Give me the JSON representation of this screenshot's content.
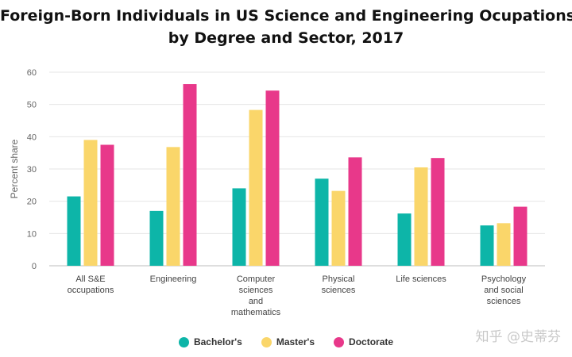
{
  "chart_data": {
    "type": "bar",
    "title_line1": "Foreign-Born Individuals in US Science and Engineering Ocupations",
    "title_line2": "by Degree and Sector, 2017",
    "ylabel": "Percent share",
    "xlabel": "",
    "ylim": [
      0,
      60
    ],
    "yticks": [
      0,
      10,
      20,
      30,
      40,
      50,
      60
    ],
    "categories": [
      [
        "All S&E",
        "occupations"
      ],
      [
        "Engineering"
      ],
      [
        "Computer",
        "sciences",
        "and",
        "mathematics"
      ],
      [
        "Physical",
        "sciences"
      ],
      [
        "Life sciences"
      ],
      [
        "Psychology",
        "and social",
        "sciences"
      ]
    ],
    "series": [
      {
        "name": "Bachelor's",
        "color": "#0db5a8",
        "values": [
          21.5,
          17,
          24,
          27,
          16.2,
          12.5
        ]
      },
      {
        "name": "Master's",
        "color": "#fad66a",
        "values": [
          39,
          36.8,
          48.3,
          23.2,
          30.5,
          13.2
        ]
      },
      {
        "name": "Doctorate",
        "color": "#e8388a",
        "values": [
          37.5,
          56.3,
          54.3,
          33.6,
          33.4,
          18.3
        ]
      }
    ],
    "legend_position": "bottom-center",
    "grid": true
  },
  "watermark": "知乎 @史蒂芬"
}
